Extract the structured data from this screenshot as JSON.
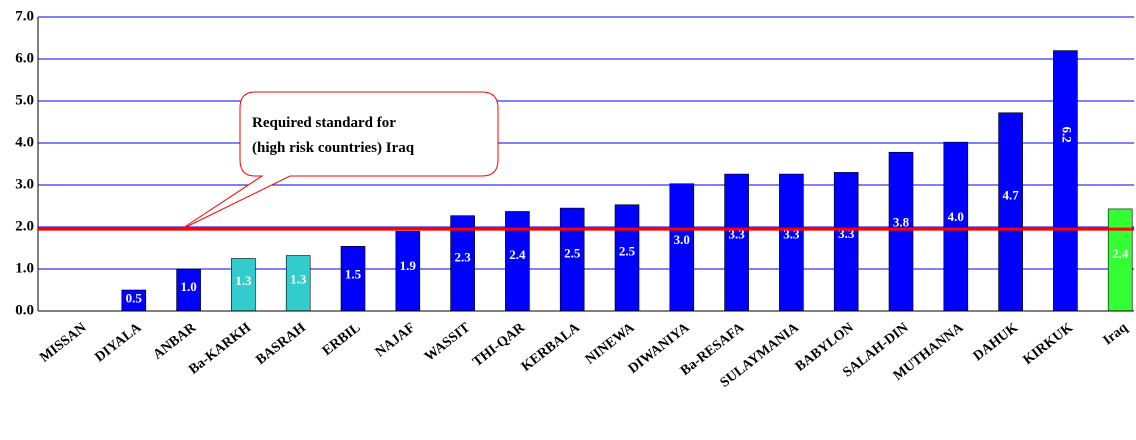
{
  "chart_data": {
    "type": "bar",
    "categories": [
      "MISSAN",
      "DIYALA",
      "ANBAR",
      "Ba-KARKH",
      "BASRAH",
      "ERBIL",
      "NAJAF",
      "WASSIT",
      "THI-QAR",
      "KERBALA",
      "NINEWA",
      "DIWANIYA",
      "Ba-RESAFA",
      "SULAYMANIA",
      "BABYLON",
      "SALAH-DIN",
      "MUTHANNA",
      "DAHUK",
      "KIRKUK",
      "Iraq"
    ],
    "values": [
      0,
      0.5,
      1.0,
      1.25,
      1.32,
      1.54,
      1.9,
      2.27,
      2.37,
      2.45,
      2.53,
      3.03,
      3.26,
      3.26,
      3.3,
      3.78,
      4.02,
      4.72,
      6.2,
      2.43
    ],
    "value_labels": [
      null,
      "0.5",
      "1.0",
      "1.3",
      "1.3",
      "1.5",
      "1.9",
      "2.3",
      "2.4",
      "2.5",
      "2.5",
      "3.0",
      "3.3",
      "3.3",
      "3.3",
      "3.8",
      "4.0",
      "4.7",
      "6.2",
      "2.4"
    ],
    "colors": [
      "#0000ff",
      "#0000ff",
      "#0000ff",
      "#33cccc",
      "#33cccc",
      "#0000ff",
      "#0000ff",
      "#0000ff",
      "#0000ff",
      "#0000ff",
      "#0000ff",
      "#0000ff",
      "#0000ff",
      "#0000ff",
      "#0000ff",
      "#0000ff",
      "#0000ff",
      "#0000ff",
      "#0000ff",
      "#33ff33"
    ],
    "ylim": [
      0,
      7
    ],
    "yticks": [
      {
        "value": 0,
        "label": "0.0"
      },
      {
        "value": 1,
        "label": "1.0"
      },
      {
        "value": 2,
        "label": "2.0"
      },
      {
        "value": 3,
        "label": "3.0"
      },
      {
        "value": 4,
        "label": "4.0"
      },
      {
        "value": 5,
        "label": "5.0"
      },
      {
        "value": 6,
        "label": "6.0"
      },
      {
        "value": 7,
        "label": "7.0"
      }
    ],
    "grid": true,
    "reference_line": {
      "value": 1.95,
      "color": "#ff0000"
    },
    "annotation": [
      "Required standard for",
      "(high risk countries) Iraq"
    ]
  }
}
